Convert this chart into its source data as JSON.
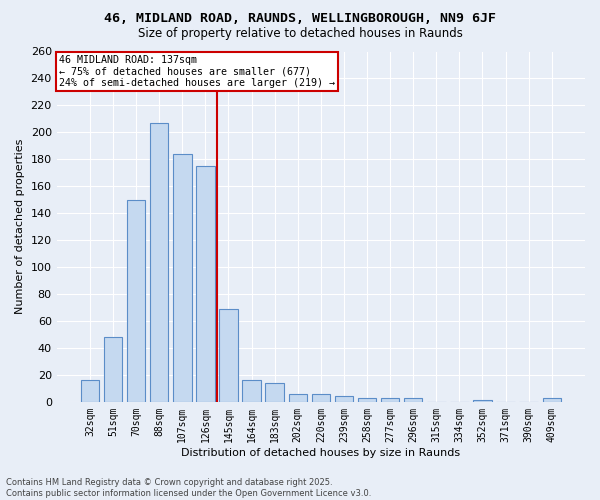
{
  "title1": "46, MIDLAND ROAD, RAUNDS, WELLINGBOROUGH, NN9 6JF",
  "title2": "Size of property relative to detached houses in Raunds",
  "xlabel": "Distribution of detached houses by size in Raunds",
  "ylabel": "Number of detached properties",
  "categories": [
    "32sqm",
    "51sqm",
    "70sqm",
    "88sqm",
    "107sqm",
    "126sqm",
    "145sqm",
    "164sqm",
    "183sqm",
    "202sqm",
    "220sqm",
    "239sqm",
    "258sqm",
    "277sqm",
    "296sqm",
    "315sqm",
    "334sqm",
    "352sqm",
    "371sqm",
    "390sqm",
    "409sqm"
  ],
  "values": [
    16,
    48,
    150,
    207,
    184,
    175,
    69,
    16,
    14,
    6,
    6,
    4,
    3,
    3,
    3,
    0,
    0,
    1,
    0,
    0,
    3
  ],
  "bar_color": "#c5d9f0",
  "bar_edge_color": "#5b8dc8",
  "bg_color": "#e8eef7",
  "grid_color": "#ffffff",
  "vline_x": 5.5,
  "vline_color": "#cc0000",
  "annotation_text": "46 MIDLAND ROAD: 137sqm\n← 75% of detached houses are smaller (677)\n24% of semi-detached houses are larger (219) →",
  "annotation_box_color": "#ffffff",
  "annotation_box_edge_color": "#cc0000",
  "footer1": "Contains HM Land Registry data © Crown copyright and database right 2025.",
  "footer2": "Contains public sector information licensed under the Open Government Licence v3.0.",
  "ylim": [
    0,
    260
  ],
  "yticks": [
    0,
    20,
    40,
    60,
    80,
    100,
    120,
    140,
    160,
    180,
    200,
    220,
    240,
    260
  ],
  "title1_fontsize": 9.5,
  "title2_fontsize": 8.5,
  "bar_width": 0.8
}
